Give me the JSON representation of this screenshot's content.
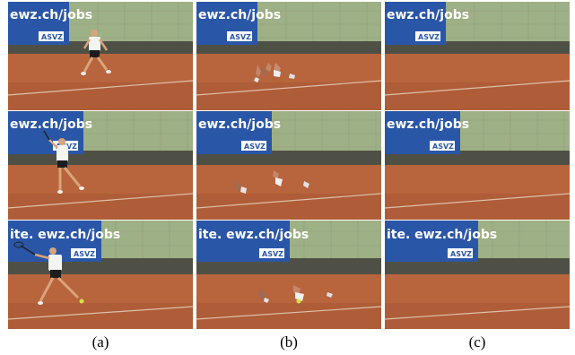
{
  "figure": {
    "columns": [
      {
        "id": "a",
        "label": "(a)",
        "rows": [
          {
            "banner_text": "ewz.ch/jobs",
            "banner_badge": "ASVZ",
            "player": "full",
            "pose": "run"
          },
          {
            "banner_text": "ewz.ch/jobs",
            "banner_badge": "ASVZ",
            "player": "full",
            "pose": "swing-high"
          },
          {
            "banner_text": "ite. ewz.ch/jobs",
            "banner_badge": "ASVZ",
            "player": "full",
            "pose": "forehand"
          }
        ]
      },
      {
        "id": "b",
        "label": "(b)",
        "rows": [
          {
            "banner_text": "ewz.ch/jobs",
            "banner_badge": "ASVZ",
            "player": "fragments",
            "pose": "run"
          },
          {
            "banner_text": "ewz.ch/jobs",
            "banner_badge": "ASVZ",
            "player": "fragments",
            "pose": "swing-high"
          },
          {
            "banner_text": "ite. ewz.ch/jobs",
            "banner_badge": "ASVZ",
            "player": "fragments",
            "pose": "forehand"
          }
        ]
      },
      {
        "id": "c",
        "label": "(c)",
        "rows": [
          {
            "banner_text": "ewz.ch/jobs",
            "banner_badge": "ASVZ",
            "player": "none",
            "pose": "none"
          },
          {
            "banner_text": "ewz.ch/jobs",
            "banner_badge": "ASVZ",
            "player": "none",
            "pose": "none"
          },
          {
            "banner_text": "ite. ewz.ch/jobs",
            "banner_badge": "ASVZ",
            "player": "none",
            "pose": "none"
          }
        ]
      }
    ],
    "colors": {
      "clay": "#b8643d",
      "clay_dark": "#9b4f2e",
      "banner": "#2a56a8",
      "wall": "#4f5045",
      "foliage": "#6f8a4c",
      "sky": "#c9d2c0"
    }
  }
}
